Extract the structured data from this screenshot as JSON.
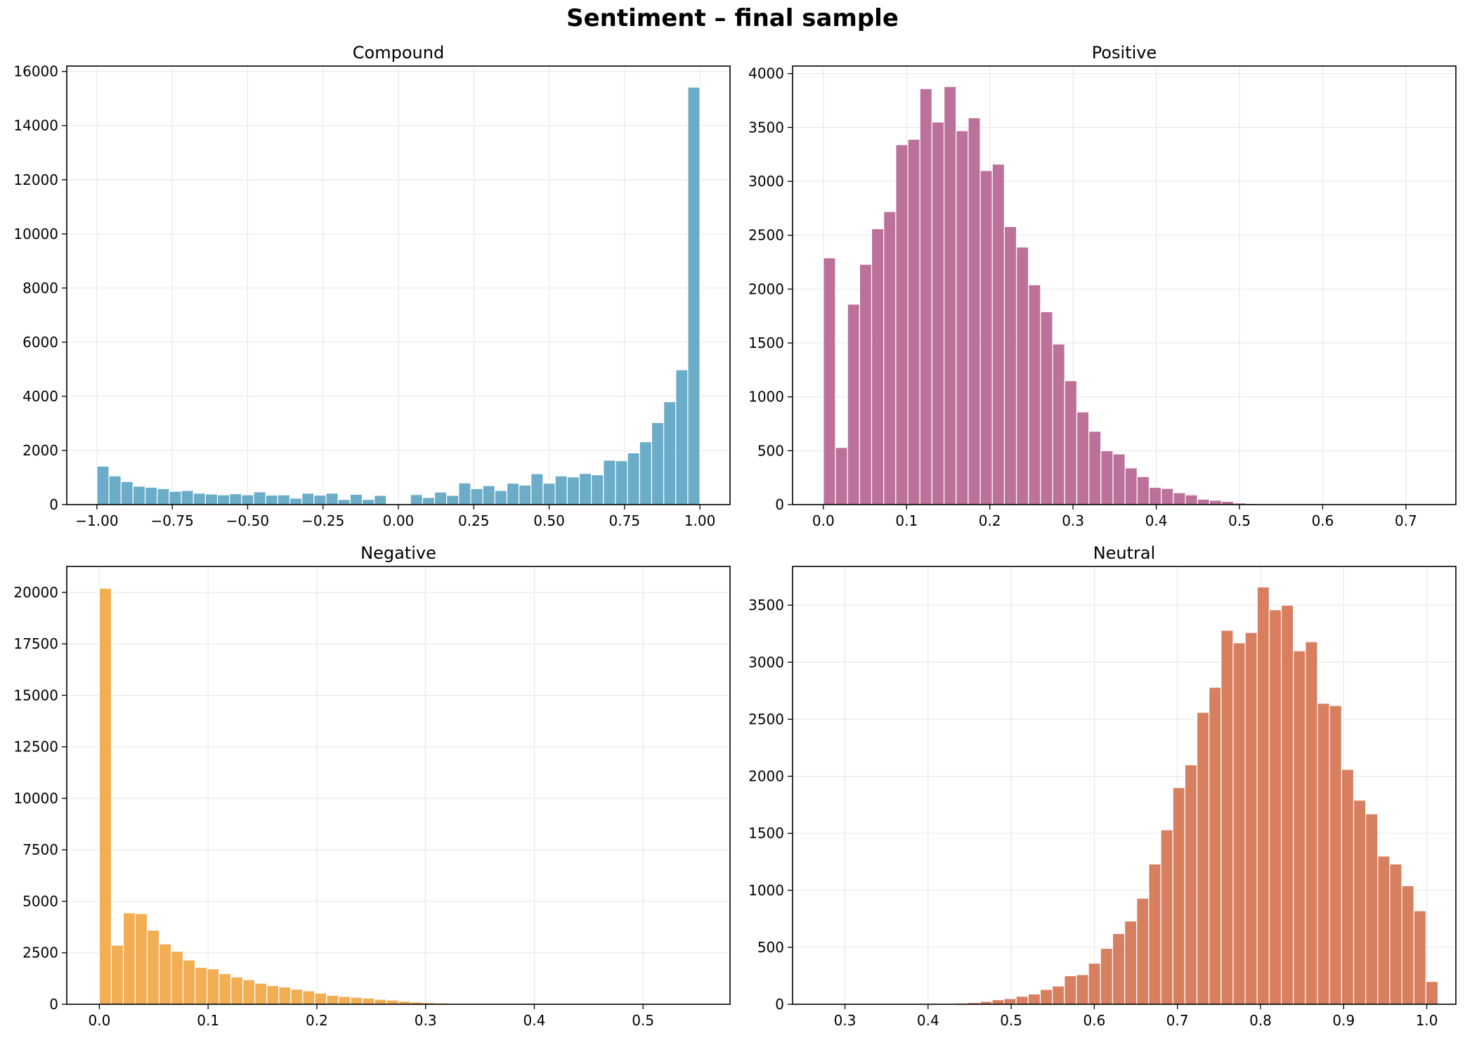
{
  "figure": {
    "title": "Sentiment – final sample"
  },
  "chart_data": [
    {
      "type": "bar",
      "title": "Compound",
      "color": "#5ba3c2",
      "grid": true,
      "xlim": [
        -1.1,
        1.1
      ],
      "ylim": [
        0,
        16200
      ],
      "xticks": [
        -1.0,
        -0.75,
        -0.5,
        -0.25,
        0.0,
        0.25,
        0.5,
        0.75,
        1.0
      ],
      "xtick_labels": [
        "−1.00",
        "−0.75",
        "−0.50",
        "−0.25",
        "0.00",
        "0.25",
        "0.50",
        "0.75",
        "1.00"
      ],
      "yticks": [
        0,
        2000,
        4000,
        6000,
        8000,
        10000,
        12000,
        14000,
        16000
      ],
      "ytick_labels": [
        "0",
        "2000",
        "4000",
        "6000",
        "8000",
        "10000",
        "12000",
        "14000",
        "16000"
      ],
      "bin_start": -1.0,
      "bin_width": 0.04,
      "values": [
        1420,
        1060,
        850,
        680,
        640,
        590,
        490,
        520,
        420,
        390,
        360,
        400,
        360,
        470,
        350,
        360,
        240,
        420,
        350,
        420,
        190,
        380,
        190,
        340,
        0,
        0,
        370,
        260,
        460,
        340,
        800,
        590,
        700,
        520,
        790,
        720,
        1140,
        790,
        1060,
        1020,
        1150,
        1100,
        1640,
        1620,
        1910,
        2320,
        3030,
        3800,
        4980,
        15420
      ]
    },
    {
      "type": "bar",
      "title": "Positive",
      "color": "#b5628f",
      "grid": true,
      "xlim": [
        -0.037,
        0.76
      ],
      "ylim": [
        0,
        4070
      ],
      "xticks": [
        0.0,
        0.1,
        0.2,
        0.3,
        0.4,
        0.5,
        0.6,
        0.7
      ],
      "xtick_labels": [
        "0.0",
        "0.1",
        "0.2",
        "0.3",
        "0.4",
        "0.5",
        "0.6",
        "0.7"
      ],
      "yticks": [
        0,
        500,
        1000,
        1500,
        2000,
        2500,
        3000,
        3500,
        4000
      ],
      "ytick_labels": [
        "0",
        "500",
        "1000",
        "1500",
        "2000",
        "2500",
        "3000",
        "3500",
        "4000"
      ],
      "bin_start": 0.0,
      "bin_width": 0.0145,
      "values": [
        2290,
        530,
        1860,
        2230,
        2560,
        2720,
        3340,
        3390,
        3860,
        3550,
        3880,
        3470,
        3590,
        3100,
        3160,
        2580,
        2390,
        2040,
        1790,
        1490,
        1150,
        860,
        680,
        500,
        470,
        340,
        260,
        160,
        150,
        110,
        90,
        50,
        40,
        30,
        15,
        10,
        6,
        5,
        3,
        3,
        2,
        2,
        1,
        1,
        1,
        1,
        0,
        0,
        0,
        1
      ]
    },
    {
      "type": "bar",
      "title": "Negative",
      "color": "#f2a541",
      "grid": true,
      "xlim": [
        -0.03,
        0.58
      ],
      "ylim": [
        0,
        21260
      ],
      "xticks": [
        0.0,
        0.1,
        0.2,
        0.3,
        0.4,
        0.5
      ],
      "xtick_labels": [
        "0.0",
        "0.1",
        "0.2",
        "0.3",
        "0.4",
        "0.5"
      ],
      "yticks": [
        0,
        2500,
        5000,
        7500,
        10000,
        12500,
        15000,
        17500,
        20000
      ],
      "ytick_labels": [
        "0",
        "2500",
        "5000",
        "7500",
        "10000",
        "12500",
        "15000",
        "17500",
        "20000"
      ],
      "bin_start": 0.0,
      "bin_width": 0.011,
      "values": [
        20200,
        2870,
        4440,
        4400,
        3600,
        2930,
        2570,
        2150,
        1790,
        1720,
        1490,
        1320,
        1190,
        1020,
        910,
        840,
        730,
        650,
        540,
        430,
        380,
        340,
        300,
        240,
        200,
        150,
        110,
        80,
        60,
        40,
        30,
        20,
        15,
        10,
        8,
        5,
        4,
        3,
        2,
        2,
        1,
        1,
        1,
        1,
        1,
        0,
        0,
        0,
        0,
        1
      ]
    },
    {
      "type": "bar",
      "title": "Neutral",
      "color": "#d4714f",
      "grid": true,
      "xlim": [
        0.237,
        1.035
      ],
      "ylim": [
        0,
        3840
      ],
      "xticks": [
        0.3,
        0.4,
        0.5,
        0.6,
        0.7,
        0.8,
        0.9,
        1.0
      ],
      "xtick_labels": [
        "0.3",
        "0.4",
        "0.5",
        "0.6",
        "0.7",
        "0.8",
        "0.9",
        "1.0"
      ],
      "yticks": [
        0,
        500,
        1000,
        1500,
        2000,
        2500,
        3000,
        3500
      ],
      "ytick_labels": [
        "0",
        "500",
        "1000",
        "1500",
        "2000",
        "2500",
        "3000",
        "3500"
      ],
      "bin_start": 0.274,
      "bin_width": 0.0145,
      "values": [
        1,
        1,
        1,
        1,
        2,
        2,
        3,
        3,
        4,
        5,
        7,
        10,
        15,
        25,
        40,
        50,
        70,
        90,
        130,
        160,
        250,
        260,
        360,
        490,
        620,
        730,
        930,
        1230,
        1530,
        1900,
        2100,
        2560,
        2780,
        3280,
        3170,
        3260,
        3660,
        3460,
        3500,
        3100,
        3180,
        2640,
        2620,
        2060,
        1790,
        1670,
        1300,
        1230,
        1040,
        820,
        200
      ]
    }
  ]
}
